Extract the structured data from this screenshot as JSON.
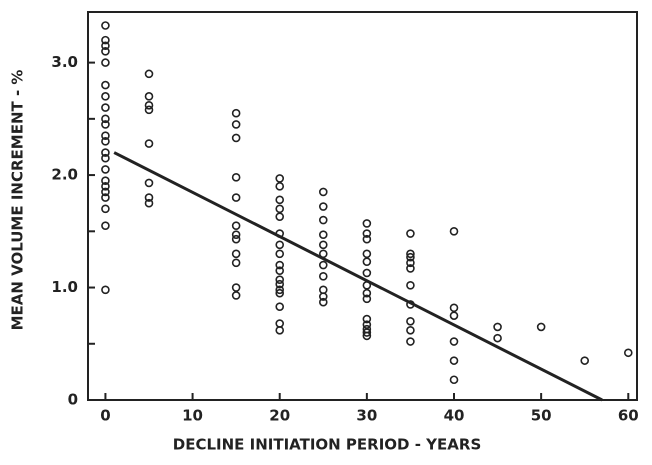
{
  "chart_data": {
    "type": "scatter",
    "xlabel": "DECLINE INITIATION PERIOD - YEARS",
    "ylabel": "MEAN VOLUME INCREMENT - %",
    "x": [
      0,
      0,
      0,
      0,
      0,
      0,
      0,
      0,
      0,
      0,
      0,
      0,
      0,
      0,
      0,
      0,
      0,
      0,
      0,
      0,
      0,
      0,
      5,
      5,
      5,
      5,
      5,
      5,
      5,
      5,
      15,
      15,
      15,
      15,
      15,
      15,
      15,
      15,
      15,
      15,
      15,
      15,
      20,
      20,
      20,
      20,
      20,
      20,
      20,
      20,
      20,
      20,
      20,
      20,
      20,
      20,
      20,
      20,
      20,
      25,
      25,
      25,
      25,
      25,
      25,
      25,
      25,
      25,
      25,
      25,
      30,
      30,
      30,
      30,
      30,
      30,
      30,
      30,
      30,
      30,
      30,
      30,
      30,
      30,
      35,
      35,
      35,
      35,
      35,
      35,
      35,
      35,
      35,
      35,
      40,
      40,
      40,
      40,
      40,
      40,
      45,
      45,
      50,
      55,
      60
    ],
    "y": [
      3.33,
      3.2,
      3.15,
      3.1,
      3.0,
      2.8,
      2.7,
      2.6,
      2.5,
      2.45,
      2.35,
      2.3,
      2.2,
      2.15,
      2.05,
      1.95,
      1.9,
      1.85,
      1.8,
      1.7,
      1.55,
      0.98,
      2.9,
      2.7,
      2.62,
      2.58,
      2.28,
      1.93,
      1.8,
      1.75,
      2.55,
      2.45,
      2.33,
      1.98,
      1.8,
      1.55,
      1.47,
      1.43,
      1.3,
      1.22,
      1.0,
      0.93,
      1.97,
      1.9,
      1.78,
      1.7,
      1.63,
      1.48,
      1.38,
      1.3,
      1.2,
      1.15,
      1.07,
      1.03,
      0.98,
      0.95,
      0.83,
      0.68,
      0.62,
      1.85,
      1.72,
      1.6,
      1.47,
      1.38,
      1.3,
      1.2,
      1.1,
      0.98,
      0.92,
      0.87,
      1.57,
      1.48,
      1.43,
      1.3,
      1.23,
      1.13,
      1.02,
      0.95,
      0.9,
      0.72,
      0.67,
      0.63,
      0.6,
      0.57,
      1.48,
      1.3,
      1.27,
      1.22,
      1.17,
      1.02,
      0.85,
      0.7,
      0.62,
      0.52,
      1.5,
      0.82,
      0.75,
      0.52,
      0.35,
      0.18,
      0.65,
      0.55,
      0.65,
      0.35,
      0.42
    ],
    "fit_line": {
      "x": [
        1,
        57
      ],
      "y": [
        2.2,
        0
      ]
    },
    "xlim": [
      -2,
      61
    ],
    "ylim": [
      0,
      3.45
    ],
    "xticks": [
      0,
      10,
      20,
      30,
      40,
      50,
      60
    ],
    "yticks": [
      0,
      {
        "value": 1,
        "label": "1.0"
      },
      {
        "value": 2,
        "label": "2.0"
      },
      {
        "value": 3,
        "label": "3.0"
      }
    ],
    "yminor": [
      0.5,
      1.5,
      2.5
    ],
    "color": "#222222"
  }
}
